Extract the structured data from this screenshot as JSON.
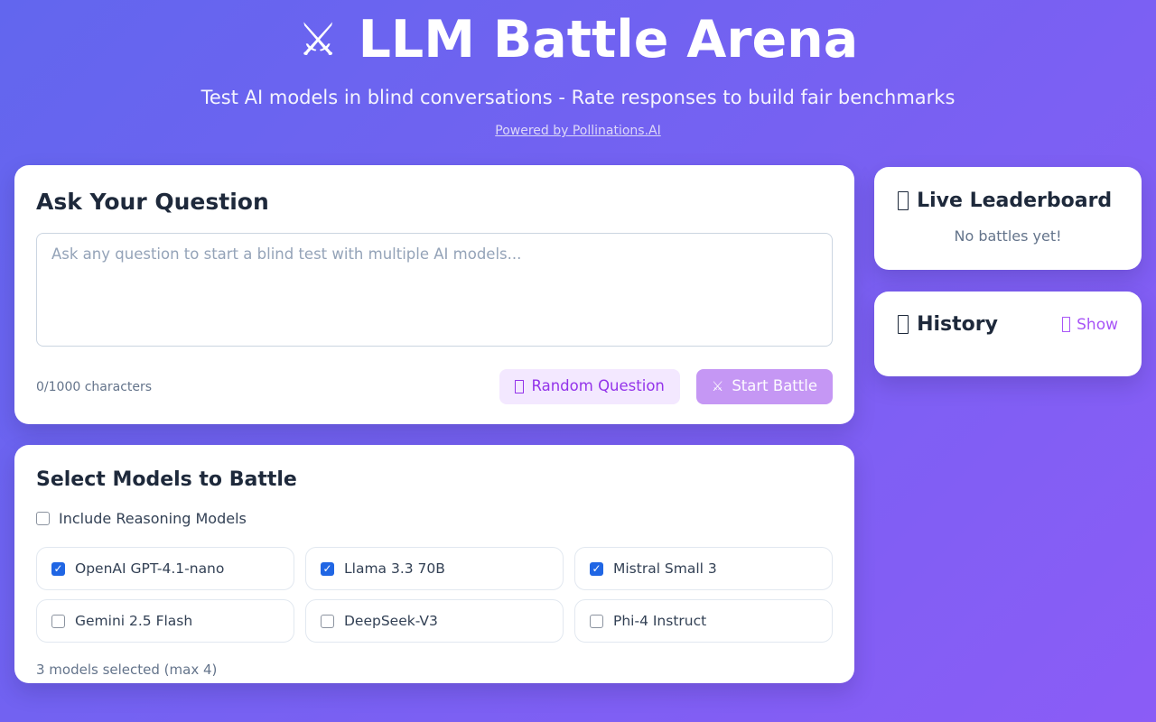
{
  "theme": {
    "bg_gradient_start": "#6266ee",
    "bg_gradient_end": "#8b5cf6",
    "accent_purple": "#9333ea",
    "link_purple": "#a855f7",
    "start_button_bg": "#c597f4",
    "random_button_bg": "#f3e8ff",
    "checkbox_blue": "#2066e4",
    "card_bg": "#ffffff",
    "muted_text": "#64748b"
  },
  "header": {
    "icon": "crossed-swords",
    "title": "LLM Battle Arena",
    "subtitle": "Test AI models in blind conversations - Rate responses to build fair benchmarks",
    "powered_by": "Powered by Pollinations.AI"
  },
  "question_card": {
    "title": "Ask Your Question",
    "textarea_value": "",
    "textarea_placeholder": "Ask any question to start a blind test with multiple AI models...",
    "char_count": "0/1000 characters",
    "random_button": {
      "icon": "missing-glyph-box",
      "label": "Random Question"
    },
    "start_button": {
      "icon": "crossed-swords",
      "label": "Start Battle",
      "disabled": true
    }
  },
  "leaderboard_card": {
    "icon": "missing-glyph-box",
    "title": "Live Leaderboard",
    "empty_text": "No battles yet!"
  },
  "history_card": {
    "icon": "missing-glyph-box",
    "title": "History",
    "show_button": {
      "icon": "missing-glyph-box",
      "label": "Show"
    }
  },
  "models_card": {
    "title": "Select Models to Battle",
    "reasoning_toggle": {
      "label": "Include Reasoning Models",
      "checked": false
    },
    "models": [
      {
        "label": "OpenAI GPT-4.1-nano",
        "checked": true
      },
      {
        "label": "Llama 3.3 70B",
        "checked": true
      },
      {
        "label": "Mistral Small 3",
        "checked": true
      },
      {
        "label": "Gemini 2.5 Flash",
        "checked": false
      },
      {
        "label": "DeepSeek-V3",
        "checked": false
      },
      {
        "label": "Phi-4 Instruct",
        "checked": false
      }
    ],
    "selection_note": "3 models selected (max 4)"
  }
}
